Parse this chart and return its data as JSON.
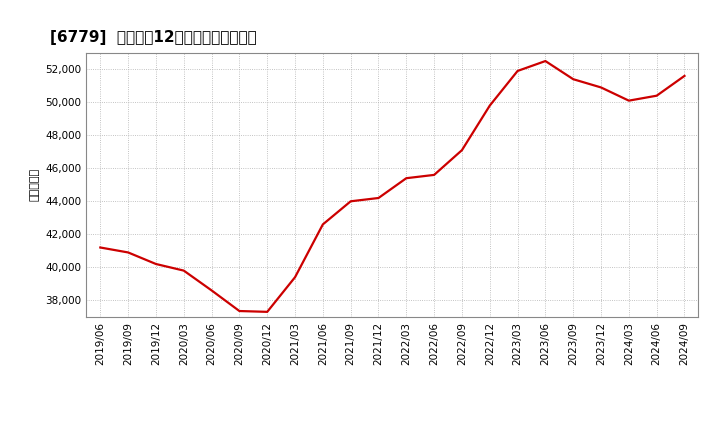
{
  "title": "[6779]  売上高の12か月移動合計の推移",
  "ylabel": "（百万円）",
  "line_color": "#cc0000",
  "background_color": "#ffffff",
  "plot_bg_color": "#ffffff",
  "grid_color": "#b0b0b0",
  "dates": [
    "2019/06",
    "2019/09",
    "2019/12",
    "2020/03",
    "2020/06",
    "2020/09",
    "2020/12",
    "2021/03",
    "2021/06",
    "2021/09",
    "2021/12",
    "2022/03",
    "2022/06",
    "2022/09",
    "2022/12",
    "2023/03",
    "2023/06",
    "2023/09",
    "2023/12",
    "2024/03",
    "2024/06",
    "2024/09"
  ],
  "values": [
    41200,
    40900,
    40200,
    39800,
    38600,
    37350,
    37300,
    39400,
    42600,
    44000,
    44200,
    45400,
    45600,
    47100,
    49800,
    51900,
    52500,
    51400,
    50900,
    50100,
    50400,
    51600
  ],
  "ylim": [
    37000,
    53000
  ],
  "yticks": [
    38000,
    40000,
    42000,
    44000,
    46000,
    48000,
    50000,
    52000
  ],
  "title_fontsize": 11,
  "axis_fontsize": 7.5,
  "ylabel_fontsize": 8,
  "line_width": 1.6
}
